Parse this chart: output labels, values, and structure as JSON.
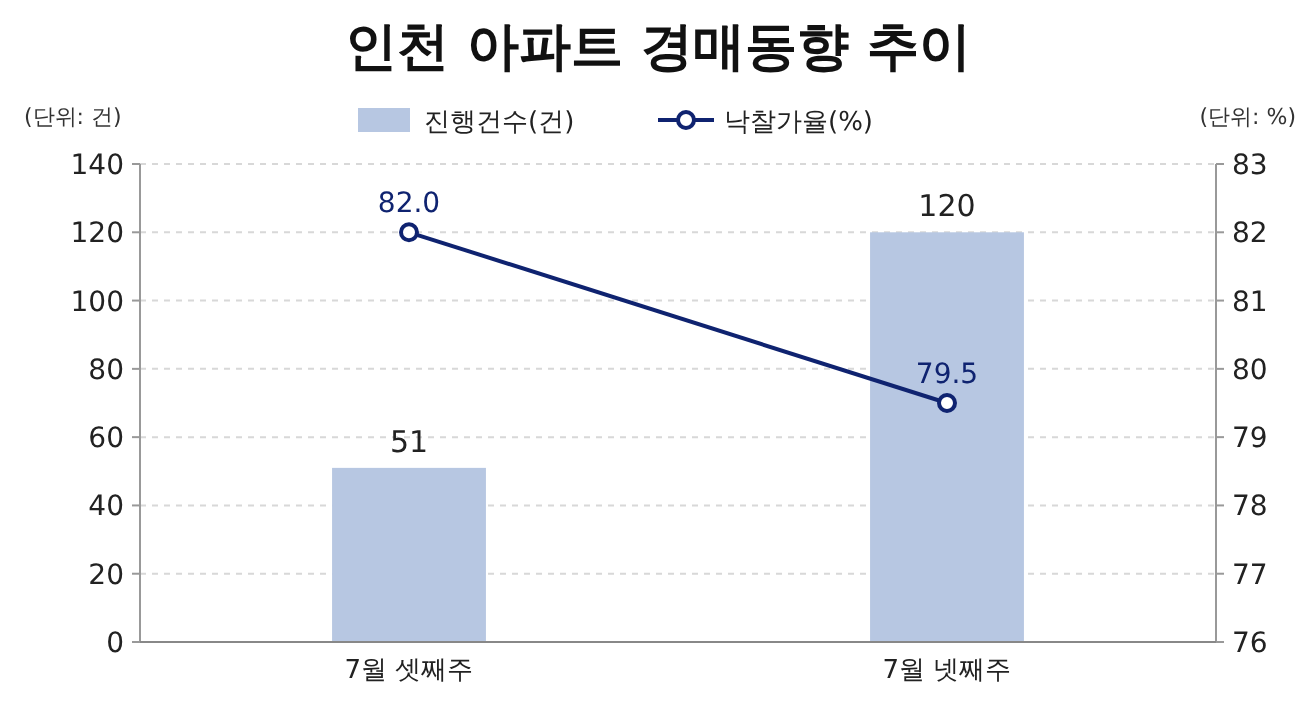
{
  "chart_data": {
    "type": "bar",
    "title": "인천 아파트 경매동향 추이",
    "ylabel": "(단위: 건)",
    "y2label": "(단위: %)",
    "categories": [
      "7월 셋째주",
      "7월 넷째주"
    ],
    "series": [
      {
        "name": "진행건수(건)",
        "color": "#b7c7e2",
        "values": [
          51,
          120
        ]
      },
      {
        "name": "낙찰가율(%)",
        "type": "line",
        "axis": "y2",
        "color": "#0f2370",
        "values": [
          82.0,
          79.5
        ],
        "value_labels": [
          "82.0",
          "79.5"
        ]
      }
    ],
    "ylim": [
      0,
      140
    ],
    "yticks": [
      0,
      20,
      40,
      60,
      80,
      100,
      120,
      140
    ],
    "y2lim": [
      76,
      83
    ],
    "y2ticks": [
      76,
      77,
      78,
      79,
      80,
      81,
      82,
      83
    ],
    "grid": "y",
    "legend": "top",
    "marker": "circle",
    "data_labels": true
  }
}
